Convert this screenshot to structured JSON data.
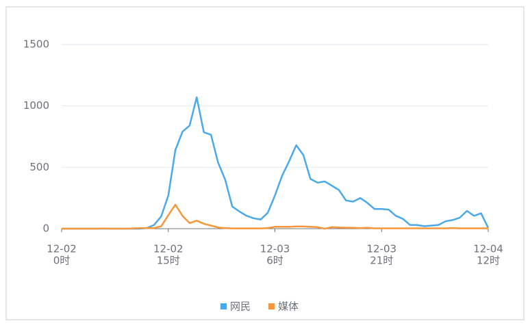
{
  "chart_data": {
    "type": "line",
    "categories": [
      [
        "12-02",
        "0时"
      ],
      null,
      null,
      null,
      null,
      null,
      null,
      null,
      null,
      null,
      null,
      null,
      null,
      null,
      null,
      [
        "12-02",
        "15时"
      ],
      null,
      null,
      null,
      null,
      null,
      null,
      null,
      null,
      null,
      null,
      null,
      null,
      null,
      null,
      [
        "12-03",
        "6时"
      ],
      null,
      null,
      null,
      null,
      null,
      null,
      null,
      null,
      null,
      null,
      null,
      null,
      null,
      null,
      [
        "12-03",
        "21时"
      ],
      null,
      null,
      null,
      null,
      null,
      null,
      null,
      null,
      null,
      null,
      null,
      null,
      null,
      null,
      [
        "12-04",
        "12时"
      ]
    ],
    "series": [
      {
        "name": "网民",
        "color": "#4aa8ec",
        "values": [
          0,
          0,
          0,
          0,
          0,
          0,
          0,
          0,
          0,
          0,
          0,
          0,
          5,
          30,
          100,
          270,
          640,
          790,
          840,
          1070,
          785,
          765,
          540,
          400,
          180,
          140,
          105,
          85,
          75,
          130,
          270,
          430,
          550,
          680,
          600,
          405,
          375,
          385,
          350,
          315,
          230,
          220,
          250,
          210,
          160,
          160,
          155,
          105,
          80,
          30,
          30,
          20,
          25,
          30,
          60,
          70,
          90,
          145,
          105,
          125,
          5
        ]
      },
      {
        "name": "媒体",
        "color": "#f7953a",
        "values": [
          0,
          0,
          0,
          0,
          0,
          0,
          2,
          0,
          0,
          0,
          2,
          5,
          5,
          5,
          20,
          110,
          195,
          105,
          45,
          65,
          40,
          25,
          10,
          5,
          2,
          2,
          2,
          2,
          2,
          5,
          15,
          15,
          15,
          18,
          18,
          15,
          12,
          0,
          12,
          10,
          8,
          8,
          5,
          8,
          3,
          3,
          3,
          3,
          3,
          3,
          3,
          3,
          3,
          3,
          3,
          5,
          3,
          3,
          3,
          3,
          3
        ]
      }
    ],
    "ylim": [
      0,
      1500
    ],
    "yticks": [
      0,
      500,
      1000,
      1500
    ],
    "grid": true,
    "legend": "bottom"
  }
}
